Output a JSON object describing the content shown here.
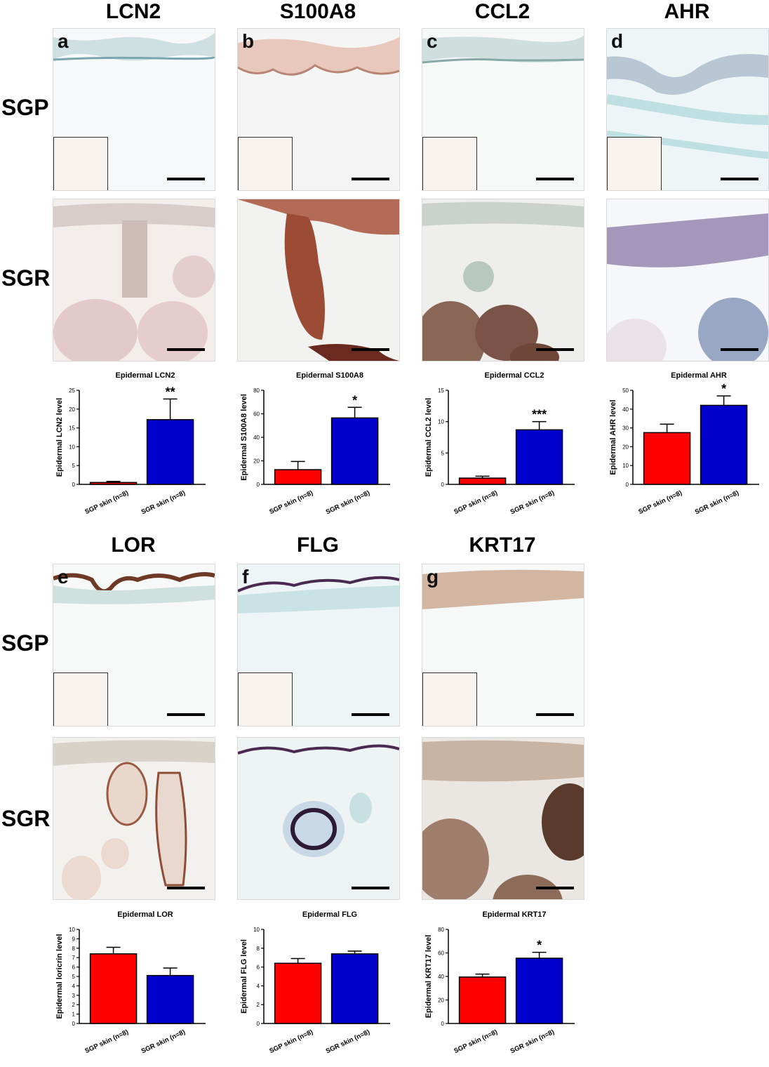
{
  "row_labels": {
    "sgp": "SGP",
    "sgr": "SGR"
  },
  "panels": [
    {
      "letter": "a",
      "marker": "LCN2"
    },
    {
      "letter": "b",
      "marker": "S100A8"
    },
    {
      "letter": "c",
      "marker": "CCL2"
    },
    {
      "letter": "d",
      "marker": "AHR"
    },
    {
      "letter": "e",
      "marker": "LOR"
    },
    {
      "letter": "f",
      "marker": "FLG"
    },
    {
      "letter": "g",
      "marker": "KRT17"
    }
  ],
  "colors": {
    "sgp_bar": "#ff0000",
    "sgr_bar": "#0000cc"
  },
  "chart_data": [
    {
      "type": "bar",
      "title": "Epidermal LCN2",
      "ylabel": "Epidermal LCN2 level",
      "categories": [
        "SGP skin (n=8)",
        "SGR skin (n=8)"
      ],
      "values": [
        0.5,
        17.2
      ],
      "errors": [
        0.3,
        5.5
      ],
      "ylim": [
        0,
        25
      ],
      "yticks": [
        0,
        5,
        10,
        15,
        20,
        25
      ],
      "significance": "**"
    },
    {
      "type": "bar",
      "title": "Epidermal S100A8",
      "ylabel": "Epidermal S100A8 level",
      "categories": [
        "SGP skin (n=8)",
        "SGR skin (n=8)"
      ],
      "values": [
        12.5,
        56.5
      ],
      "errors": [
        7,
        9
      ],
      "ylim": [
        0,
        80
      ],
      "yticks": [
        0,
        20,
        40,
        60,
        80
      ],
      "significance": "*"
    },
    {
      "type": "bar",
      "title": "Epidermal CCL2",
      "ylabel": "Epidermal CCL2 level",
      "categories": [
        "SGP skin (n=8)",
        "SGR skin (n=8)"
      ],
      "values": [
        1.0,
        8.7
      ],
      "errors": [
        0.3,
        1.3
      ],
      "ylim": [
        0,
        15
      ],
      "yticks": [
        0,
        5,
        10,
        15
      ],
      "significance": "***"
    },
    {
      "type": "bar",
      "title": "Epidermal AHR",
      "ylabel": "Epidermal AHR level",
      "categories": [
        "SGP skin (n=8)",
        "SGR skin (n=8)"
      ],
      "values": [
        27.5,
        42.0
      ],
      "errors": [
        4.5,
        5
      ],
      "ylim": [
        0,
        50
      ],
      "yticks": [
        0,
        10,
        20,
        30,
        40,
        50
      ],
      "significance": "*"
    },
    {
      "type": "bar",
      "title": "Epidermal LOR",
      "ylabel": "Epidermal loricrin level",
      "categories": [
        "SGP skin (n=8)",
        "SGR skin (n=8)"
      ],
      "values": [
        7.4,
        5.1
      ],
      "errors": [
        0.7,
        0.8
      ],
      "ylim": [
        0,
        10
      ],
      "yticks": [
        0,
        1,
        2,
        3,
        4,
        5,
        6,
        7,
        8,
        9,
        10
      ],
      "significance": ""
    },
    {
      "type": "bar",
      "title": "Epidermal FLG",
      "ylabel": "Epidermal FLG level",
      "categories": [
        "SGP skin (n=8)",
        "SGR skin (n=8)"
      ],
      "values": [
        6.4,
        7.4
      ],
      "errors": [
        0.5,
        0.3
      ],
      "ylim": [
        0,
        10
      ],
      "yticks": [
        0,
        2,
        4,
        6,
        8,
        10
      ],
      "significance": ""
    },
    {
      "type": "bar",
      "title": "Epidermal KRT17",
      "ylabel": "Epidermal KRT17 level",
      "categories": [
        "SGP skin (n=8)",
        "SGR skin (n=8)"
      ],
      "values": [
        39.5,
        55.5
      ],
      "errors": [
        2.5,
        5
      ],
      "ylim": [
        0,
        80
      ],
      "yticks": [
        0,
        20,
        40,
        60,
        80
      ],
      "significance": "*"
    }
  ]
}
